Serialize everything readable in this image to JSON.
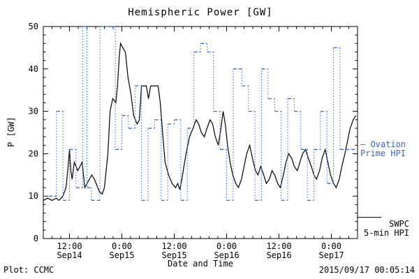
{
  "title": "Hemispheric Power [GW]",
  "footer": {
    "plot_source": "Plot: CCMC",
    "timestamp": "2015/09/17 00:05:14"
  },
  "legend": {
    "ovation": {
      "line1": "– Ovation",
      "line2": "Prime HPI",
      "color": "#3a64c8"
    },
    "swpc": {
      "line1": "SWPC",
      "line2": "5-min HPI",
      "color": "#000000"
    }
  },
  "chart_data": {
    "type": "line",
    "title": "Hemispheric Power [GW]",
    "xlabel": "Date and Time",
    "ylabel": "P [GW]",
    "ylim": [
      0,
      50
    ],
    "x_range": [
      6,
      78
    ],
    "y_ticks": [
      0,
      10,
      20,
      30,
      40,
      50
    ],
    "y_minor": 2,
    "x_minor": 2,
    "grid": false,
    "legend_position": "right-outside",
    "x_ticks": [
      {
        "t": 12,
        "time": "12:00",
        "date": "Sep14"
      },
      {
        "t": 24,
        "time": "0:00",
        "date": "Sep15"
      },
      {
        "t": 36,
        "time": "12:00",
        "date": "Sep15"
      },
      {
        "t": 48,
        "time": "0:00",
        "date": "Sep16"
      },
      {
        "t": 60,
        "time": "12:00",
        "date": "Sep16"
      },
      {
        "t": 72,
        "time": "0:00",
        "date": "Sep17"
      }
    ],
    "series": [
      {
        "name": "SWPC 5-min HPI",
        "style": "solid",
        "color": "#000000",
        "points": [
          [
            6,
            9
          ],
          [
            7,
            9.5
          ],
          [
            8,
            9
          ],
          [
            9,
            9.5
          ],
          [
            9.6,
            9
          ],
          [
            10.5,
            10
          ],
          [
            11.2,
            12
          ],
          [
            11.7,
            17
          ],
          [
            12,
            21
          ],
          [
            12.3,
            16
          ],
          [
            12.6,
            14
          ],
          [
            13.1,
            18
          ],
          [
            13.5,
            17
          ],
          [
            13.9,
            16
          ],
          [
            14.4,
            17
          ],
          [
            14.9,
            18
          ],
          [
            15.5,
            12
          ],
          [
            16.3,
            13.5
          ],
          [
            17.1,
            15
          ],
          [
            17.7,
            14
          ],
          [
            18.1,
            13
          ],
          [
            18.9,
            11
          ],
          [
            19.5,
            10.5
          ],
          [
            20,
            12
          ],
          [
            20.8,
            20
          ],
          [
            21.3,
            30
          ],
          [
            21.9,
            33
          ],
          [
            22.6,
            32
          ],
          [
            23,
            36
          ],
          [
            23.4,
            43
          ],
          [
            23.7,
            46
          ],
          [
            24.2,
            45
          ],
          [
            24.8,
            44
          ],
          [
            25.4,
            38
          ],
          [
            26.1,
            34
          ],
          [
            26.7,
            29
          ],
          [
            27.5,
            27
          ],
          [
            28,
            28
          ],
          [
            28.5,
            36
          ],
          [
            29.6,
            36
          ],
          [
            30.1,
            33
          ],
          [
            30.6,
            36
          ],
          [
            32.3,
            36
          ],
          [
            32.8,
            32
          ],
          [
            33.4,
            24
          ],
          [
            33.9,
            18
          ],
          [
            34.7,
            15
          ],
          [
            35.5,
            13
          ],
          [
            36.3,
            12
          ],
          [
            36.8,
            13
          ],
          [
            37.3,
            11.5
          ],
          [
            37.9,
            15
          ],
          [
            38.7,
            20
          ],
          [
            39.5,
            24
          ],
          [
            40.3,
            26
          ],
          [
            41,
            28
          ],
          [
            41.6,
            27
          ],
          [
            42.2,
            25
          ],
          [
            42.9,
            24
          ],
          [
            43.5,
            26
          ],
          [
            44.2,
            28
          ],
          [
            44.8,
            27
          ],
          [
            45.4,
            24
          ],
          [
            46.1,
            22
          ],
          [
            46.7,
            26
          ],
          [
            47.2,
            30
          ],
          [
            47.7,
            27
          ],
          [
            48.2,
            22
          ],
          [
            48.8,
            18
          ],
          [
            49.4,
            15
          ],
          [
            50.1,
            13
          ],
          [
            50.7,
            12
          ],
          [
            51.4,
            14
          ],
          [
            52,
            17
          ],
          [
            52.6,
            20
          ],
          [
            53.3,
            22
          ],
          [
            53.9,
            19
          ],
          [
            54.6,
            16
          ],
          [
            55.2,
            15
          ],
          [
            55.8,
            17
          ],
          [
            56.5,
            15
          ],
          [
            57.1,
            13
          ],
          [
            57.8,
            14
          ],
          [
            58.4,
            16
          ],
          [
            59,
            15
          ],
          [
            59.7,
            13
          ],
          [
            60.3,
            12
          ],
          [
            61,
            15
          ],
          [
            61.6,
            18
          ],
          [
            62.2,
            20
          ],
          [
            62.9,
            19
          ],
          [
            63.5,
            17
          ],
          [
            64.2,
            16
          ],
          [
            64.8,
            18
          ],
          [
            65.4,
            20
          ],
          [
            66.1,
            21
          ],
          [
            66.7,
            19
          ],
          [
            67.4,
            17
          ],
          [
            68,
            15
          ],
          [
            68.6,
            14
          ],
          [
            69.3,
            16
          ],
          [
            69.9,
            19
          ],
          [
            70.6,
            21
          ],
          [
            71.2,
            18
          ],
          [
            71.8,
            15
          ],
          [
            72.5,
            13
          ],
          [
            73.1,
            12
          ],
          [
            73.8,
            14
          ],
          [
            74.4,
            17
          ],
          [
            75.1,
            20
          ],
          [
            75.7,
            23
          ],
          [
            76.3,
            26
          ],
          [
            77,
            28
          ],
          [
            77.6,
            29
          ]
        ]
      },
      {
        "name": "Ovation Prime HPI",
        "style": "step-dotted",
        "color": "#3a64c8",
        "steps": [
          [
            6,
            10
          ],
          [
            9,
            30
          ],
          [
            10.5,
            9
          ],
          [
            12,
            21
          ],
          [
            13.5,
            12
          ],
          [
            15,
            50
          ],
          [
            16,
            12
          ],
          [
            17,
            9
          ],
          [
            19,
            50
          ],
          [
            22.5,
            21
          ],
          [
            24,
            29
          ],
          [
            25.5,
            26
          ],
          [
            27,
            36
          ],
          [
            28.5,
            9
          ],
          [
            30,
            26
          ],
          [
            31.5,
            28
          ],
          [
            33,
            9
          ],
          [
            34.5,
            27
          ],
          [
            36,
            28
          ],
          [
            37.5,
            9
          ],
          [
            39,
            26
          ],
          [
            40.5,
            44
          ],
          [
            42,
            46
          ],
          [
            43.5,
            44
          ],
          [
            45,
            30
          ],
          [
            46.5,
            21
          ],
          [
            48,
            9
          ],
          [
            49.5,
            40
          ],
          [
            51.5,
            36
          ],
          [
            53,
            30
          ],
          [
            54.5,
            9
          ],
          [
            56,
            40
          ],
          [
            57.5,
            33
          ],
          [
            59,
            30
          ],
          [
            60.5,
            9
          ],
          [
            62,
            33
          ],
          [
            63.5,
            30
          ],
          [
            65,
            21
          ],
          [
            66.5,
            9
          ],
          [
            68,
            21
          ],
          [
            69.5,
            30
          ],
          [
            71,
            13
          ],
          [
            72.5,
            45
          ],
          [
            74,
            21
          ]
        ]
      }
    ]
  }
}
